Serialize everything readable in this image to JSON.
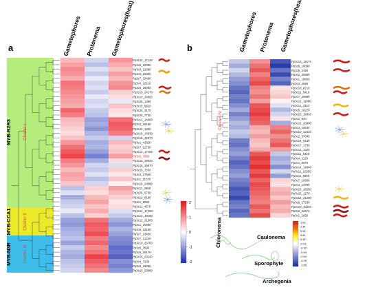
{
  "panel_a": {
    "label": "a",
    "columns": [
      "Gametophores",
      "Protonema",
      "Gametophores(heat)"
    ],
    "groups": [
      "MYB-R2R3",
      "MYB-CCA1",
      "MYB-N3R"
    ],
    "clusters": [
      "Cluster I",
      "Cluster II",
      "Cluster III"
    ],
    "colors": {
      "myb_r2r3": "#b4ed7c",
      "myb_cca1": "#eaea28",
      "myb_n3r": "#3dbdea",
      "cluster_text": "#e8433a"
    },
    "rows": [
      "Pp3c24_17130",
      "Pp3c9_10090",
      "Pp3c3_12080",
      "Pp3c3_16300",
      "Pp3c7_23490",
      "Pp3c4_10110",
      "Pp3c6_26000",
      "Pp3c10_24170",
      "Pp3c10_24650",
      "Pp3c26_1390",
      "Pp3c15_9910",
      "Pp3c25_3170",
      "Pp3c25_7730",
      "Pp3c12_14300",
      "Pp3c3_15180",
      "Pp3c24_1400",
      "Pp3c16_14030",
      "Pp3c16_15970",
      "Pp3c1_42820",
      "Pp3c7_12730",
      "Pp3c12_17160",
      "Pp3c5_7850",
      "Pp3c16_19020",
      "Pp3c16_15970",
      "Pp3c26_7530",
      "Pp3c3_37540",
      "Pp3c1_11170",
      "Pp3c16_24080",
      "Pp3c11_2960",
      "Pp3c26_6730",
      "Pp3c12_8190",
      "Pp3c1_8090",
      "Pp3c11_4570",
      "Pp3c12_17450",
      "Pp3c12_18180",
      "Pp3c12_21500",
      "Pp3c1_10980",
      "Pp3c9_23160",
      "Pp3c7_23450",
      "Pp3c7_21220",
      "Pp3c10_20750",
      "Pp3c6_3590",
      "Pp3c6_16170",
      "Pp3c15_23110",
      "Pp3c4_7100",
      "Pp3c9_19080",
      "Pp3c15_23090"
    ],
    "highlight_row": "Pp3c5_7850",
    "heatmap": [
      [
        0.6,
        -0.4,
        0.9
      ],
      [
        0.8,
        -0.6,
        0.7
      ],
      [
        1.0,
        -0.3,
        0.5
      ],
      [
        0.9,
        -0.5,
        0.8
      ],
      [
        0.7,
        -0.2,
        0.6
      ],
      [
        1.2,
        -0.4,
        0.9
      ],
      [
        1.1,
        -0.3,
        1.0
      ],
      [
        1.0,
        -0.5,
        0.4
      ],
      [
        0.9,
        -0.2,
        0.3
      ],
      [
        0.8,
        -0.4,
        -0.2
      ],
      [
        0.7,
        -0.3,
        0.5
      ],
      [
        1.3,
        -0.5,
        0.3
      ],
      [
        1.1,
        -0.6,
        0.2
      ],
      [
        0.6,
        -0.9,
        1.2
      ],
      [
        0.5,
        -0.8,
        1.4
      ],
      [
        0.4,
        -1.0,
        1.3
      ],
      [
        0.3,
        -0.7,
        1.1
      ],
      [
        0.5,
        -0.5,
        -0.4
      ],
      [
        0.9,
        -0.8,
        0.6
      ],
      [
        1.2,
        -0.7,
        0.4
      ],
      [
        1.4,
        -0.9,
        0.5
      ],
      [
        1.6,
        -1.2,
        0.8
      ],
      [
        1.1,
        -0.8,
        0.3
      ],
      [
        0.9,
        -0.4,
        -0.3
      ],
      [
        0.6,
        -0.5,
        0.4
      ],
      [
        0.8,
        -0.3,
        0.2
      ],
      [
        0.7,
        -0.6,
        0.5
      ],
      [
        0.5,
        -0.4,
        0.1
      ],
      [
        -0.6,
        0.4,
        0.8
      ],
      [
        -0.3,
        0.3,
        0.6
      ],
      [
        -0.8,
        0.6,
        0.4
      ],
      [
        -0.5,
        0.8,
        0.2
      ],
      [
        -0.4,
        0.5,
        0.3
      ],
      [
        -0.2,
        0.7,
        -0.3
      ],
      [
        -0.6,
        0.4,
        -0.5
      ],
      [
        -0.9,
        1.2,
        -0.8
      ],
      [
        -1.0,
        1.4,
        -1.0
      ],
      [
        -0.8,
        1.3,
        -0.7
      ],
      [
        -0.7,
        1.5,
        -0.9
      ],
      [
        -0.6,
        1.1,
        -1.1
      ],
      [
        -0.9,
        1.3,
        -1.2
      ],
      [
        -0.5,
        1.0,
        -1.4
      ],
      [
        -0.7,
        1.2,
        -1.3
      ],
      [
        -0.8,
        1.6,
        -1.5
      ],
      [
        -0.6,
        1.4,
        -1.1
      ],
      [
        -0.5,
        1.2,
        -1.2
      ],
      [
        -0.4,
        1.0,
        -1.0
      ]
    ],
    "legend": {
      "ticks": [
        "2",
        "1",
        "0",
        "-1",
        "-2"
      ]
    }
  },
  "panel_b": {
    "label": "b",
    "columns": [
      "Gametophores",
      "Protonema",
      "Gametophores(heat)"
    ],
    "cluster": "Cluster IV",
    "rows": [
      "Pp3c13_19170",
      "Pp3c6_19090",
      "Pp3c5_2150",
      "Pp3c2_20860",
      "Pp3c1_19660",
      "Pp3c4_2590",
      "Pp3c18_8710",
      "Pp3c11_5410",
      "Pp3c7_20880",
      "Pp3c12_11880",
      "Pp3c11_3110",
      "Pp3c6_16220",
      "Pp3c23_19330",
      "Pp3c2_820",
      "Pp3c12_10900",
      "Pp3c4_16540",
      "Pp3c10_12410",
      "Pp3c2_37040",
      "Pp3c14_5130",
      "Pp3c17_1730",
      "Pp3c12_1320",
      "Pp3c11_5420",
      "Pp3c4_2120",
      "Pp3c1_4970",
      "Pp3c14_14040",
      "Pp3c11_10350",
      "Pp3c11_6600",
      "Pp3c7_10800",
      "Pp3c4_13790",
      "Pp3c23_18250",
      "Pp3c15_1270",
      "Pp3c12_21290",
      "Pp3c9_17230",
      "Pp3c10_10240",
      "Pp3c2_34670",
      "Pp3c1_1650"
    ],
    "heatmap": [
      [
        -0.4,
        0.8,
        -1.2
      ],
      [
        -0.6,
        1.0,
        -1.4
      ],
      [
        -0.3,
        1.2,
        -1.0
      ],
      [
        -0.5,
        0.9,
        -1.3
      ],
      [
        -0.7,
        1.1,
        -0.9
      ],
      [
        -0.8,
        1.3,
        -1.1
      ],
      [
        -1.0,
        0.9,
        0.2
      ],
      [
        -1.1,
        0.8,
        0.3
      ],
      [
        -0.9,
        1.0,
        0.4
      ],
      [
        -1.0,
        0.7,
        0.1
      ],
      [
        -0.8,
        1.2,
        -0.2
      ],
      [
        -0.6,
        1.3,
        -0.5
      ],
      [
        -0.9,
        1.4,
        -0.3
      ],
      [
        -0.7,
        1.2,
        0.2
      ],
      [
        -0.5,
        1.1,
        -0.6
      ],
      [
        -0.6,
        0.6,
        0.9
      ],
      [
        -0.4,
        0.5,
        1.1
      ],
      [
        -0.5,
        0.7,
        0.8
      ],
      [
        -0.9,
        0.5,
        1.0
      ],
      [
        -1.0,
        0.4,
        1.2
      ],
      [
        -0.8,
        0.6,
        0.7
      ],
      [
        -0.7,
        1.2,
        -0.4
      ],
      [
        -0.9,
        1.4,
        -0.6
      ],
      [
        -1.1,
        1.3,
        -0.5
      ],
      [
        -1.0,
        1.5,
        -0.8
      ],
      [
        -0.8,
        1.2,
        -0.3
      ],
      [
        -0.7,
        1.4,
        -0.7
      ],
      [
        -0.9,
        1.1,
        0.3
      ],
      [
        -1.0,
        1.3,
        0.2
      ],
      [
        -1.2,
        1.2,
        0.5
      ],
      [
        -1.1,
        1.1,
        0.6
      ],
      [
        -1.3,
        1.0,
        0.4
      ],
      [
        -1.0,
        0.9,
        0.7
      ],
      [
        -0.9,
        1.2,
        0.5
      ],
      [
        -1.1,
        1.0,
        0.6
      ],
      [
        -1.0,
        1.3,
        0.3
      ]
    ],
    "legend": {
      "ticks": [
        "1.55",
        "1.24",
        "0.93",
        "0.61",
        "0.30",
        "-0.01",
        "-0.32",
        "-0.63",
        "-0.94",
        "-1.25",
        "-1.55"
      ]
    },
    "tissues": [
      "Chloronema",
      "Caulonema",
      "Sporophyte",
      "Archegonia"
    ]
  }
}
